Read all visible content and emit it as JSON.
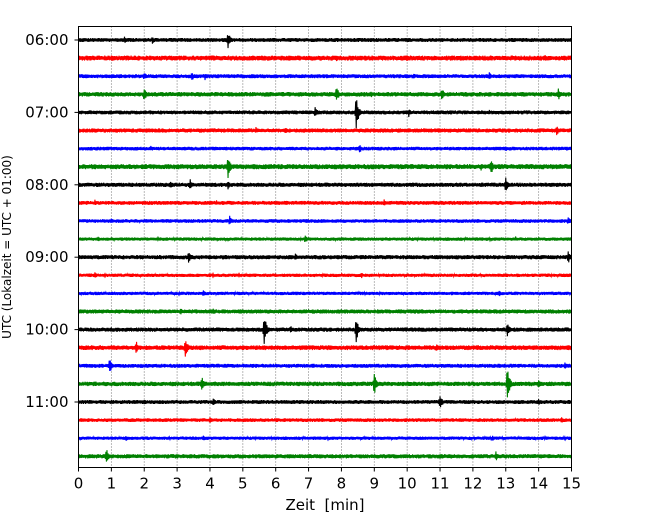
{
  "chart_data": {
    "type": "line",
    "title": "",
    "xlabel": "Zeit  [min]",
    "ylabel": "UTC (Lokalzeit = UTC + 01:00)",
    "xlim": [
      0,
      15
    ],
    "x_ticks": [
      "0",
      "1",
      "2",
      "3",
      "4",
      "5",
      "6",
      "7",
      "8",
      "9",
      "10",
      "11",
      "12",
      "13",
      "14",
      "15"
    ],
    "y_tick_labels": [
      "06:00",
      "07:00",
      "08:00",
      "09:00",
      "10:00",
      "11:00"
    ],
    "y_tick_trace_index": [
      0,
      4,
      8,
      12,
      16,
      20
    ],
    "trace_interval_min": 15,
    "grid": "vertical dotted at each minute",
    "colors": [
      "#000000",
      "#ff0000",
      "#0000ff",
      "#008000"
    ],
    "traces": [
      {
        "start": "06:00",
        "noise": 0.14,
        "events": [
          [
            1.4,
            0.28
          ],
          [
            2.25,
            0.3
          ],
          [
            4.55,
            0.6
          ],
          [
            10.0,
            0.2
          ]
        ]
      },
      {
        "start": "06:15",
        "noise": 0.18,
        "events": [
          [
            1.0,
            0.25
          ],
          [
            3.7,
            0.22
          ],
          [
            7.85,
            0.3
          ],
          [
            10.0,
            0.3
          ],
          [
            14.2,
            0.25
          ]
        ]
      },
      {
        "start": "06:30",
        "noise": 0.14,
        "events": [
          [
            2.0,
            0.3
          ],
          [
            3.45,
            0.35
          ],
          [
            3.85,
            0.28
          ],
          [
            10.2,
            0.25
          ],
          [
            12.5,
            0.3
          ],
          [
            15.0,
            0.3
          ]
        ]
      },
      {
        "start": "06:45",
        "noise": 0.16,
        "events": [
          [
            2.0,
            0.5
          ],
          [
            7.85,
            0.6
          ],
          [
            11.05,
            0.55
          ],
          [
            14.6,
            0.45
          ],
          [
            8.9,
            0.25
          ]
        ]
      },
      {
        "start": "07:00",
        "noise": 0.14,
        "events": [
          [
            7.2,
            0.45
          ],
          [
            8.45,
            1.2
          ],
          [
            10.05,
            0.35
          ],
          [
            12.5,
            0.2
          ]
        ]
      },
      {
        "start": "07:15",
        "noise": 0.15,
        "events": [
          [
            5.4,
            0.25
          ],
          [
            6.3,
            0.25
          ],
          [
            14.55,
            0.4
          ]
        ]
      },
      {
        "start": "07:30",
        "noise": 0.13,
        "events": [
          [
            2.2,
            0.2
          ],
          [
            8.55,
            0.38
          ],
          [
            13.0,
            0.22
          ]
        ]
      },
      {
        "start": "07:45",
        "noise": 0.18,
        "events": [
          [
            4.55,
            0.85
          ],
          [
            12.55,
            0.6
          ],
          [
            12.25,
            0.3
          ]
        ]
      },
      {
        "start": "08:00",
        "noise": 0.15,
        "events": [
          [
            2.8,
            0.3
          ],
          [
            3.4,
            0.4
          ],
          [
            4.55,
            0.35
          ],
          [
            13.0,
            0.55
          ]
        ]
      },
      {
        "start": "08:15",
        "noise": 0.14,
        "events": [
          [
            0.5,
            0.25
          ],
          [
            4.2,
            0.2
          ],
          [
            9.3,
            0.25
          ]
        ]
      },
      {
        "start": "08:30",
        "noise": 0.13,
        "events": [
          [
            1.0,
            0.2
          ],
          [
            4.6,
            0.38
          ],
          [
            14.9,
            0.3
          ]
        ]
      },
      {
        "start": "08:45",
        "noise": 0.12,
        "events": [
          [
            0.6,
            0.2
          ],
          [
            6.9,
            0.3
          ],
          [
            13.3,
            0.2
          ]
        ]
      },
      {
        "start": "09:00",
        "noise": 0.15,
        "events": [
          [
            3.35,
            0.5
          ],
          [
            14.9,
            0.5
          ],
          [
            6.6,
            0.3
          ]
        ]
      },
      {
        "start": "09:15",
        "noise": 0.12,
        "events": [
          [
            0.5,
            0.25
          ],
          [
            4.0,
            0.22
          ],
          [
            8.6,
            0.25
          ]
        ]
      },
      {
        "start": "09:30",
        "noise": 0.12,
        "events": [
          [
            3.8,
            0.3
          ],
          [
            11.35,
            0.2
          ],
          [
            12.8,
            0.25
          ]
        ]
      },
      {
        "start": "09:45",
        "noise": 0.15,
        "events": [
          [
            3.1,
            0.3
          ],
          [
            4.1,
            0.22
          ],
          [
            12.4,
            0.2
          ]
        ]
      },
      {
        "start": "10:00",
        "noise": 0.15,
        "events": [
          [
            5.65,
            1.2
          ],
          [
            8.45,
            0.9
          ],
          [
            6.45,
            0.3
          ],
          [
            13.05,
            0.55
          ]
        ]
      },
      {
        "start": "10:15",
        "noise": 0.17,
        "events": [
          [
            1.75,
            0.55
          ],
          [
            3.25,
            0.75
          ],
          [
            10.9,
            0.35
          ]
        ]
      },
      {
        "start": "10:30",
        "noise": 0.14,
        "events": [
          [
            0.95,
            0.55
          ],
          [
            14.8,
            0.3
          ]
        ]
      },
      {
        "start": "10:45",
        "noise": 0.16,
        "events": [
          [
            3.75,
            0.6
          ],
          [
            9.0,
            0.85
          ],
          [
            13.05,
            1.2
          ],
          [
            14.0,
            0.35
          ]
        ]
      },
      {
        "start": "11:00",
        "noise": 0.14,
        "events": [
          [
            4.1,
            0.35
          ],
          [
            11.0,
            0.6
          ],
          [
            14.0,
            0.25
          ]
        ]
      },
      {
        "start": "11:15",
        "noise": 0.13,
        "events": [
          [
            4.0,
            0.25
          ],
          [
            14.7,
            0.25
          ]
        ]
      },
      {
        "start": "11:30",
        "noise": 0.12,
        "events": [
          [
            1.45,
            0.22
          ],
          [
            3.8,
            0.2
          ],
          [
            12.6,
            0.25
          ]
        ]
      },
      {
        "start": "11:45",
        "noise": 0.15,
        "events": [
          [
            0.85,
            0.6
          ],
          [
            12.7,
            0.35
          ]
        ]
      }
    ]
  }
}
